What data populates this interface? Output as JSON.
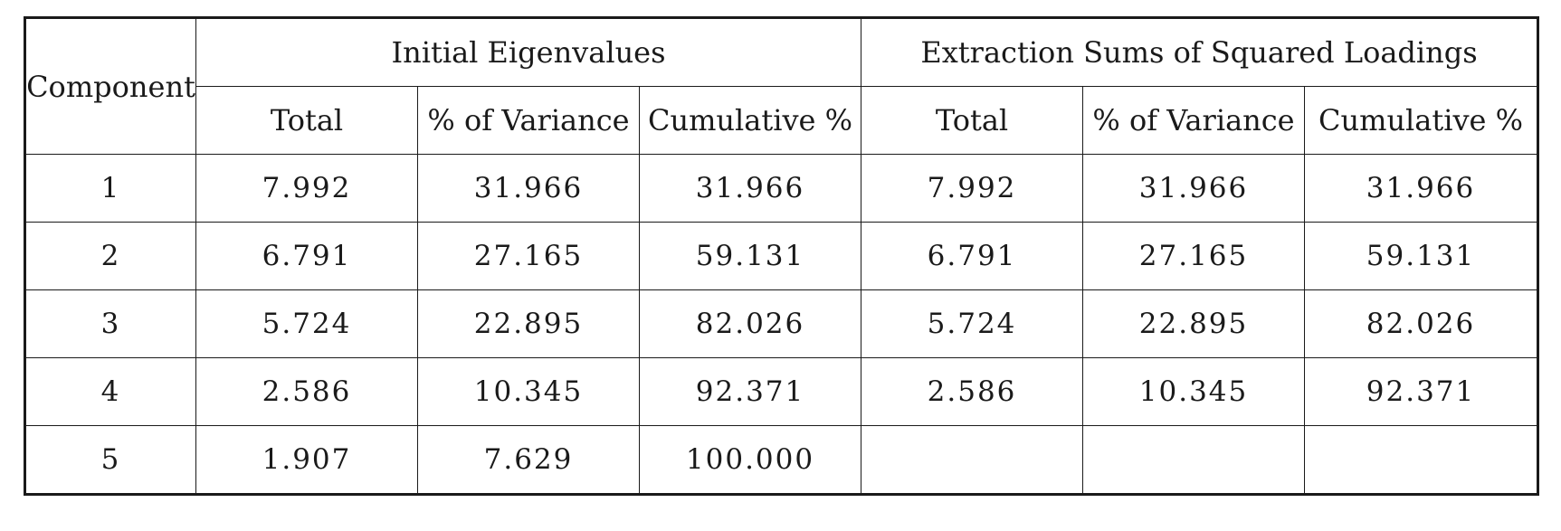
{
  "table": {
    "component_header": "Component",
    "groups": [
      {
        "title": "Initial Eigenvalues",
        "columns": [
          "Total",
          "% of Variance",
          "Cumulative %"
        ]
      },
      {
        "title": "Extraction Sums of Squared Loadings",
        "columns": [
          "Total",
          "% of Variance",
          "Cumulative %"
        ]
      }
    ],
    "rows": [
      {
        "component": "1",
        "initial": [
          "7.992",
          "31.966",
          "31.966"
        ],
        "extraction": [
          "7.992",
          "31.966",
          "31.966"
        ]
      },
      {
        "component": "2",
        "initial": [
          "6.791",
          "27.165",
          "59.131"
        ],
        "extraction": [
          "6.791",
          "27.165",
          "59.131"
        ]
      },
      {
        "component": "3",
        "initial": [
          "5.724",
          "22.895",
          "82.026"
        ],
        "extraction": [
          "5.724",
          "22.895",
          "82.026"
        ]
      },
      {
        "component": "4",
        "initial": [
          "2.586",
          "10.345",
          "92.371"
        ],
        "extraction": [
          "2.586",
          "10.345",
          "92.371"
        ]
      },
      {
        "component": "5",
        "initial": [
          "1.907",
          "7.629",
          "100.000"
        ],
        "extraction": [
          "",
          "",
          ""
        ]
      }
    ]
  }
}
